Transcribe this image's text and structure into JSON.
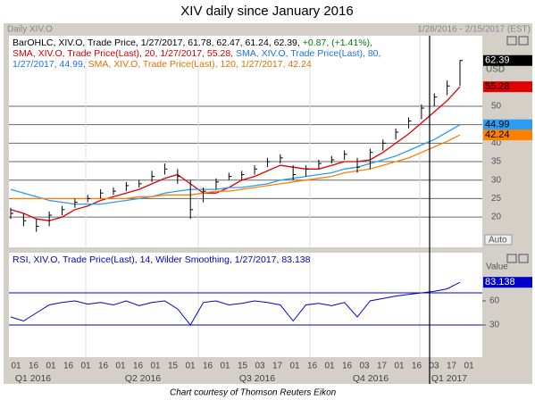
{
  "chart_data": {
    "type": "ohlc",
    "title": "XIV daily since January 2016",
    "panel_label": "Daily XIV.O",
    "date_range": "1/28/2016 - 2/15/2017 (EST)",
    "legend_lines": [
      [
        {
          "text": "BarOHLC, XIV.O, Trade Price, 1/27/2017, 61.78, 62.47, 61.24, 62.39, ",
          "color": "#000000"
        },
        {
          "text": "+0.87, (+1.41%),",
          "color": "#008000"
        }
      ],
      [
        {
          "text": "SMA, XIV.O, Trade Price(Last),  20, 1/27/2017, 55.28, ",
          "color": "#d00000"
        },
        {
          "text": "SMA, XIV.O, Trade Price(Last),  80,",
          "color": "#1a73e8"
        }
      ],
      [
        {
          "text": "1/27/2017, 44.99, ",
          "color": "#1a73e8"
        },
        {
          "text": "SMA, XIV.O, Trade Price(Last),  120, 1/27/2017, 42.24",
          "color": "#e07000"
        }
      ]
    ],
    "unit_label": "USD",
    "scale_mode": "Auto",
    "ylim": [
      11.8,
      69.1
    ],
    "yticks": [
      20,
      25,
      30,
      35,
      40,
      45,
      50
    ],
    "grid": true,
    "price": {
      "color": "#000000",
      "high": [
        22.5,
        21,
        19.5,
        21.5,
        23,
        25,
        26,
        27.5,
        28,
        29.5,
        30,
        32.5,
        34.5,
        33,
        30,
        28,
        30.5,
        32,
        32.5,
        34,
        36,
        37,
        34,
        34,
        35.5,
        36.5,
        38,
        36,
        38.5,
        41,
        44,
        47,
        50.5,
        53.5,
        57,
        62.47
      ],
      "low": [
        19.5,
        17.5,
        16,
        17.5,
        20.5,
        22.5,
        24,
        25,
        26,
        27,
        28,
        29.5,
        31.5,
        29,
        19.5,
        24,
        27.5,
        30,
        30,
        31.5,
        33.5,
        34.5,
        30,
        31,
        33,
        34.5,
        35.5,
        32,
        33,
        38,
        41,
        44,
        46.5,
        50,
        53,
        55.5
      ],
      "close": [
        21,
        19,
        17.5,
        20.5,
        22,
        24,
        25,
        26.5,
        27,
        28.5,
        29,
        31,
        33,
        31,
        22,
        27,
        29.5,
        31,
        31.5,
        33,
        35,
        36,
        31.5,
        33,
        34.5,
        35.5,
        37,
        33.5,
        37.5,
        40,
        43,
        46,
        49.5,
        52.5,
        55.5,
        62.39
      ]
    },
    "series": [
      {
        "name": "SMA 20",
        "color": "#e00000",
        "values": [
          22,
          21,
          19.5,
          19,
          20,
          22,
          23,
          24.5,
          25.5,
          26.5,
          27.5,
          29,
          30.5,
          31.5,
          29,
          26.5,
          26.5,
          28,
          30,
          31,
          32.5,
          34,
          33.5,
          33,
          33,
          34,
          35,
          35,
          35.5,
          37.5,
          40,
          42.5,
          45.5,
          48.5,
          51.5,
          55.28
        ]
      },
      {
        "name": "SMA 80",
        "color": "#2a9df4",
        "values": [
          27.5,
          26.5,
          25.5,
          24.5,
          24,
          23.5,
          23.5,
          23.5,
          24,
          24.5,
          25,
          25.5,
          26.5,
          27,
          27.5,
          27.5,
          27.5,
          28,
          28,
          28.5,
          29,
          30,
          30.5,
          31,
          31.5,
          32,
          33,
          33.5,
          34.5,
          35.5,
          36.5,
          38,
          39.5,
          41,
          43,
          44.99
        ]
      },
      {
        "name": "SMA 120",
        "color": "#ff8000",
        "values": [
          25,
          25,
          25,
          25,
          25,
          25,
          25,
          25,
          25,
          25,
          25.5,
          25.5,
          26,
          26,
          26,
          26.5,
          27,
          27,
          27.5,
          28,
          28.5,
          29,
          29.5,
          30,
          30.5,
          31,
          32,
          32.5,
          33,
          34,
          35,
          36,
          37.5,
          39,
          40.5,
          42.24
        ]
      }
    ],
    "rsi": {
      "legend": "RSI, XIV.O, Trade Price(Last),  14, Wilder Smoothing, 1/27/2017, 83.138",
      "value_header": "Value",
      "color": "#0000cc",
      "ylim": [
        -10,
        120
      ],
      "yticks": [
        30,
        60
      ],
      "reference_lines": [
        30,
        70
      ],
      "values": [
        40,
        35,
        45,
        55,
        58,
        60,
        56,
        58,
        55,
        60,
        54,
        58,
        60,
        50,
        30,
        58,
        60,
        55,
        57,
        60,
        58,
        55,
        35,
        55,
        57,
        54,
        58,
        40,
        60,
        63,
        66,
        68,
        70,
        72,
        75,
        83.138
      ]
    },
    "x_tick_labels": [
      "01",
      "16",
      "01",
      "16",
      "01",
      "16",
      "01",
      "16",
      "01",
      "15",
      "01",
      "16",
      "01",
      "15",
      "03",
      "17",
      "01",
      "16",
      "01",
      "16",
      "03",
      "17",
      "01",
      "16",
      "03",
      "17",
      "01"
    ],
    "quarter_labels": [
      "Q1 2016",
      "Q2 2016",
      "Q3 2016",
      "Q4 2016",
      "Q1 2017"
    ],
    "caption": "Chart courtesy  of Thomson Reuters Eikon"
  }
}
